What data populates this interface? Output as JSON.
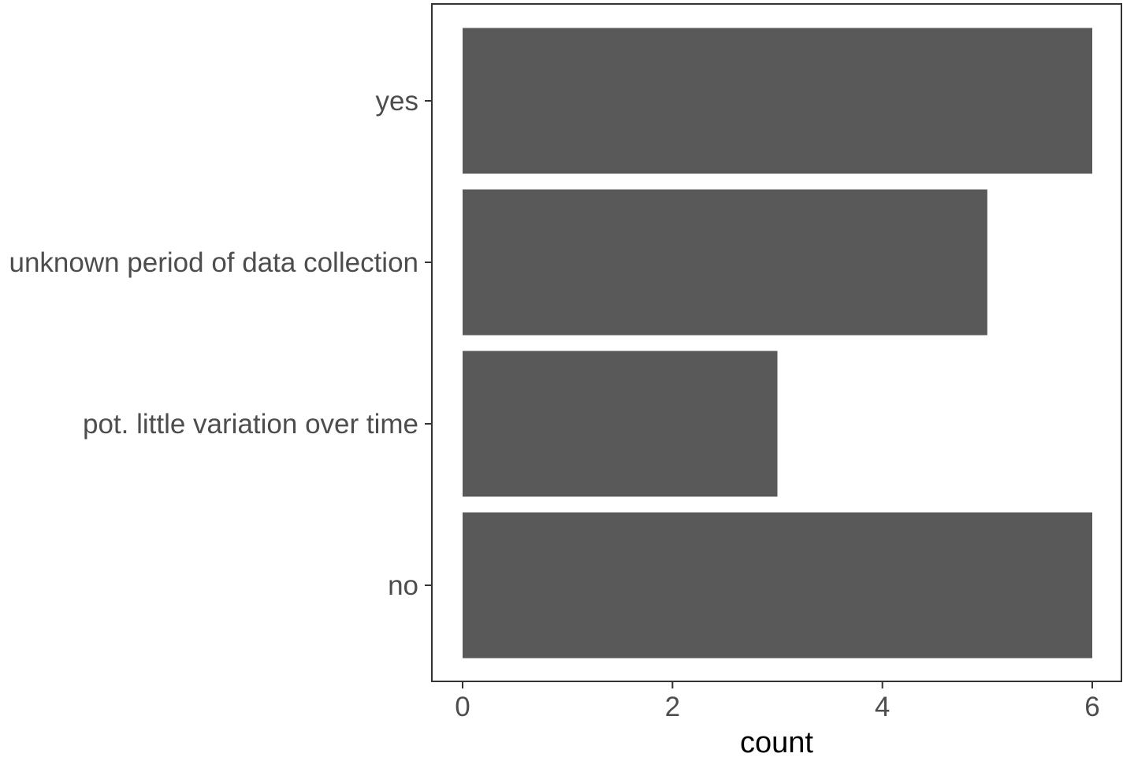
{
  "chart_data": {
    "type": "bar",
    "orientation": "horizontal",
    "title": "",
    "xlabel": "count",
    "ylabel": "",
    "categories": [
      "no",
      "pot. little variation over time",
      "unknown period of data collection",
      "yes"
    ],
    "values": [
      6,
      3,
      5,
      6
    ],
    "xlim": [
      0,
      6
    ],
    "x_ticks": [
      0,
      2,
      4,
      6
    ],
    "grid": false,
    "legend": "none",
    "colors": {
      "bar": "#595959",
      "axis": "#333333",
      "label": "#4d4d4d",
      "title": "#000000"
    }
  }
}
